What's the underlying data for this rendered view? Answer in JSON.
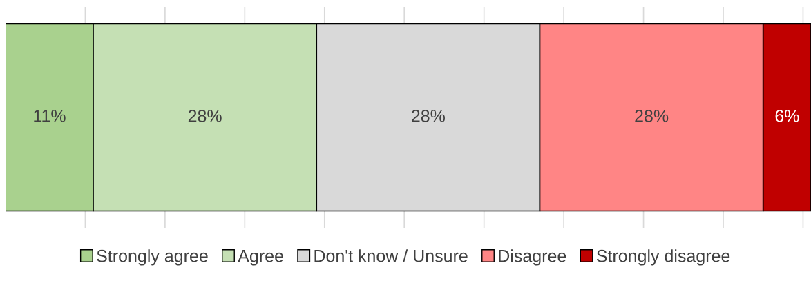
{
  "chart_data": {
    "type": "bar",
    "orientation": "horizontal",
    "stacked": true,
    "categories": [
      null
    ],
    "series": [
      {
        "name": "Strongly agree",
        "color": "#a9d18e",
        "values": [
          11
        ],
        "value_labels": [
          "11%"
        ]
      },
      {
        "name": "Agree",
        "color": "#c5e0b4",
        "values": [
          28
        ],
        "value_labels": [
          "28%"
        ]
      },
      {
        "name": "Don't know / Unsure",
        "color": "#d9d9d9",
        "values": [
          28
        ],
        "value_labels": [
          "28%"
        ]
      },
      {
        "name": "Disagree",
        "color": "#ff8585",
        "values": [
          28
        ],
        "value_labels": [
          "28%"
        ]
      },
      {
        "name": "Strongly disagree",
        "color": "#c00000",
        "values": [
          6
        ],
        "value_labels": [
          "6%"
        ]
      }
    ],
    "xlim": [
      0,
      101
    ],
    "xticks": [
      {
        "value": 0,
        "label": null
      },
      {
        "value": 10,
        "label": null
      },
      {
        "value": 20,
        "label": null
      },
      {
        "value": 30,
        "label": null
      },
      {
        "value": 40,
        "label": null
      },
      {
        "value": 50,
        "label": null
      },
      {
        "value": 60,
        "label": null
      },
      {
        "value": 70,
        "label": null
      },
      {
        "value": 80,
        "label": null
      },
      {
        "value": 90,
        "label": null
      },
      {
        "value": 100,
        "label": null
      }
    ],
    "grid": "x",
    "legend": "bottom"
  }
}
